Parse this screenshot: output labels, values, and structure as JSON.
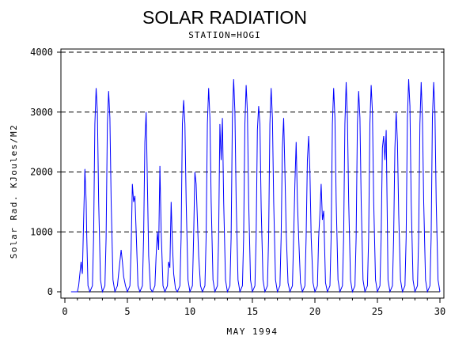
{
  "chart_data": {
    "type": "line",
    "title": "SOLAR RADIATION",
    "subtitle": "STATION=HOGI",
    "xlabel": "MAY 1994",
    "ylabel": "Solar Rad. KJoules/M2",
    "xlim": [
      0,
      30
    ],
    "ylim": [
      0,
      4000
    ],
    "xticks": [
      0,
      5,
      10,
      15,
      20,
      25,
      30
    ],
    "yticks": [
      0,
      1000,
      2000,
      3000,
      4000
    ],
    "grid": "horizontal dashed",
    "series": [
      {
        "color": "#0000ff",
        "x": [
          0.5,
          1.0,
          1.1,
          1.3,
          1.4,
          1.5,
          1.6,
          1.7,
          1.75,
          1.85,
          2.0,
          2.2,
          2.3,
          2.4,
          2.5,
          2.6,
          2.7,
          2.85,
          3.0,
          3.2,
          3.3,
          3.4,
          3.5,
          3.6,
          3.7,
          3.85,
          4.0,
          4.2,
          4.3,
          4.4,
          4.5,
          4.6,
          4.7,
          4.85,
          5.0,
          5.2,
          5.3,
          5.4,
          5.5,
          5.6,
          5.7,
          5.85,
          6.0,
          6.2,
          6.3,
          6.4,
          6.5,
          6.6,
          6.7,
          6.85,
          7.0,
          7.2,
          7.3,
          7.4,
          7.5,
          7.6,
          7.7,
          7.85,
          8.0,
          8.2,
          8.3,
          8.4,
          8.5,
          8.6,
          8.7,
          8.85,
          9.0,
          9.2,
          9.3,
          9.4,
          9.5,
          9.6,
          9.7,
          9.85,
          10.0,
          10.2,
          10.3,
          10.4,
          10.5,
          10.6,
          10.7,
          10.85,
          11.0,
          11.2,
          11.3,
          11.4,
          11.5,
          11.6,
          11.7,
          11.85,
          12.0,
          12.2,
          12.3,
          12.4,
          12.5,
          12.6,
          12.7,
          12.85,
          13.0,
          13.2,
          13.3,
          13.4,
          13.5,
          13.6,
          13.7,
          13.85,
          14.0,
          14.2,
          14.3,
          14.4,
          14.5,
          14.6,
          14.7,
          14.85,
          15.0,
          15.2,
          15.3,
          15.4,
          15.5,
          15.6,
          15.7,
          15.85,
          16.0,
          16.2,
          16.3,
          16.4,
          16.5,
          16.6,
          16.7,
          16.85,
          17.0,
          17.2,
          17.3,
          17.4,
          17.5,
          17.6,
          17.7,
          17.85,
          18.0,
          18.2,
          18.3,
          18.4,
          18.5,
          18.6,
          18.7,
          18.85,
          19.0,
          19.2,
          19.3,
          19.4,
          19.5,
          19.6,
          19.7,
          19.85,
          20.0,
          20.2,
          20.3,
          20.4,
          20.5,
          20.6,
          20.7,
          20.85,
          21.0,
          21.2,
          21.3,
          21.4,
          21.5,
          21.6,
          21.7,
          21.85,
          22.0,
          22.2,
          22.3,
          22.4,
          22.5,
          22.6,
          22.7,
          22.85,
          23.0,
          23.2,
          23.3,
          23.4,
          23.5,
          23.6,
          23.7,
          23.85,
          24.0,
          24.2,
          24.3,
          24.4,
          24.5,
          24.6,
          24.7,
          24.85,
          25.0,
          25.2,
          25.3,
          25.4,
          25.5,
          25.6,
          25.7,
          25.85,
          26.0,
          26.2,
          26.3,
          26.4,
          26.5,
          26.6,
          26.7,
          26.85,
          27.0,
          27.2,
          27.3,
          27.4,
          27.5,
          27.6,
          27.7,
          27.85,
          28.0,
          28.2,
          28.3,
          28.4,
          28.5,
          28.6,
          28.7,
          28.85,
          29.0,
          29.2,
          29.3,
          29.4,
          29.5,
          29.6,
          29.7,
          29.85,
          30.0
        ],
        "y": [
          0,
          0,
          100,
          500,
          300,
          1200,
          2050,
          1500,
          900,
          100,
          0,
          100,
          900,
          2800,
          3400,
          3000,
          1500,
          200,
          0,
          100,
          900,
          2800,
          3350,
          2900,
          1500,
          200,
          0,
          100,
          300,
          500,
          700,
          500,
          250,
          100,
          0,
          100,
          700,
          1800,
          1500,
          1600,
          1000,
          100,
          0,
          100,
          900,
          2500,
          3000,
          1800,
          600,
          50,
          0,
          100,
          600,
          1000,
          700,
          2100,
          1000,
          100,
          0,
          100,
          500,
          400,
          1500,
          800,
          300,
          50,
          0,
          100,
          900,
          2800,
          3200,
          2800,
          1500,
          200,
          0,
          100,
          900,
          2000,
          1800,
          1200,
          600,
          100,
          0,
          100,
          900,
          2800,
          3400,
          2900,
          1500,
          200,
          0,
          100,
          900,
          2800,
          2200,
          2900,
          1500,
          200,
          0,
          100,
          900,
          2900,
          3550,
          3000,
          1500,
          200,
          0,
          100,
          900,
          2800,
          3450,
          3000,
          1500,
          200,
          0,
          100,
          900,
          2700,
          3100,
          2800,
          1400,
          200,
          0,
          100,
          900,
          2800,
          3400,
          2900,
          1500,
          200,
          0,
          100,
          900,
          2400,
          2900,
          2000,
          1000,
          150,
          0,
          100,
          900,
          1800,
          2500,
          1500,
          900,
          150,
          0,
          100,
          900,
          2200,
          2600,
          2000,
          900,
          150,
          0,
          100,
          900,
          1300,
          1800,
          1200,
          1350,
          150,
          0,
          100,
          900,
          2800,
          3400,
          2900,
          1500,
          200,
          0,
          100,
          900,
          2800,
          3500,
          2900,
          1500,
          200,
          0,
          100,
          900,
          2800,
          3350,
          2900,
          1500,
          200,
          0,
          100,
          900,
          2800,
          3450,
          3000,
          1500,
          200,
          0,
          100,
          900,
          2400,
          2600,
          2200,
          2700,
          200,
          0,
          100,
          900,
          2400,
          3000,
          2500,
          1300,
          200,
          0,
          100,
          900,
          2900,
          3550,
          3100,
          1500,
          200,
          0,
          100,
          900,
          2800,
          3500,
          2900,
          1500,
          200,
          0,
          100,
          900,
          2900,
          3500,
          3000,
          1500,
          200,
          0
        ]
      },
      {
        "color": "#000000",
        "x": [
          0.5,
          30.0
        ],
        "y": [
          0,
          0
        ]
      }
    ]
  }
}
